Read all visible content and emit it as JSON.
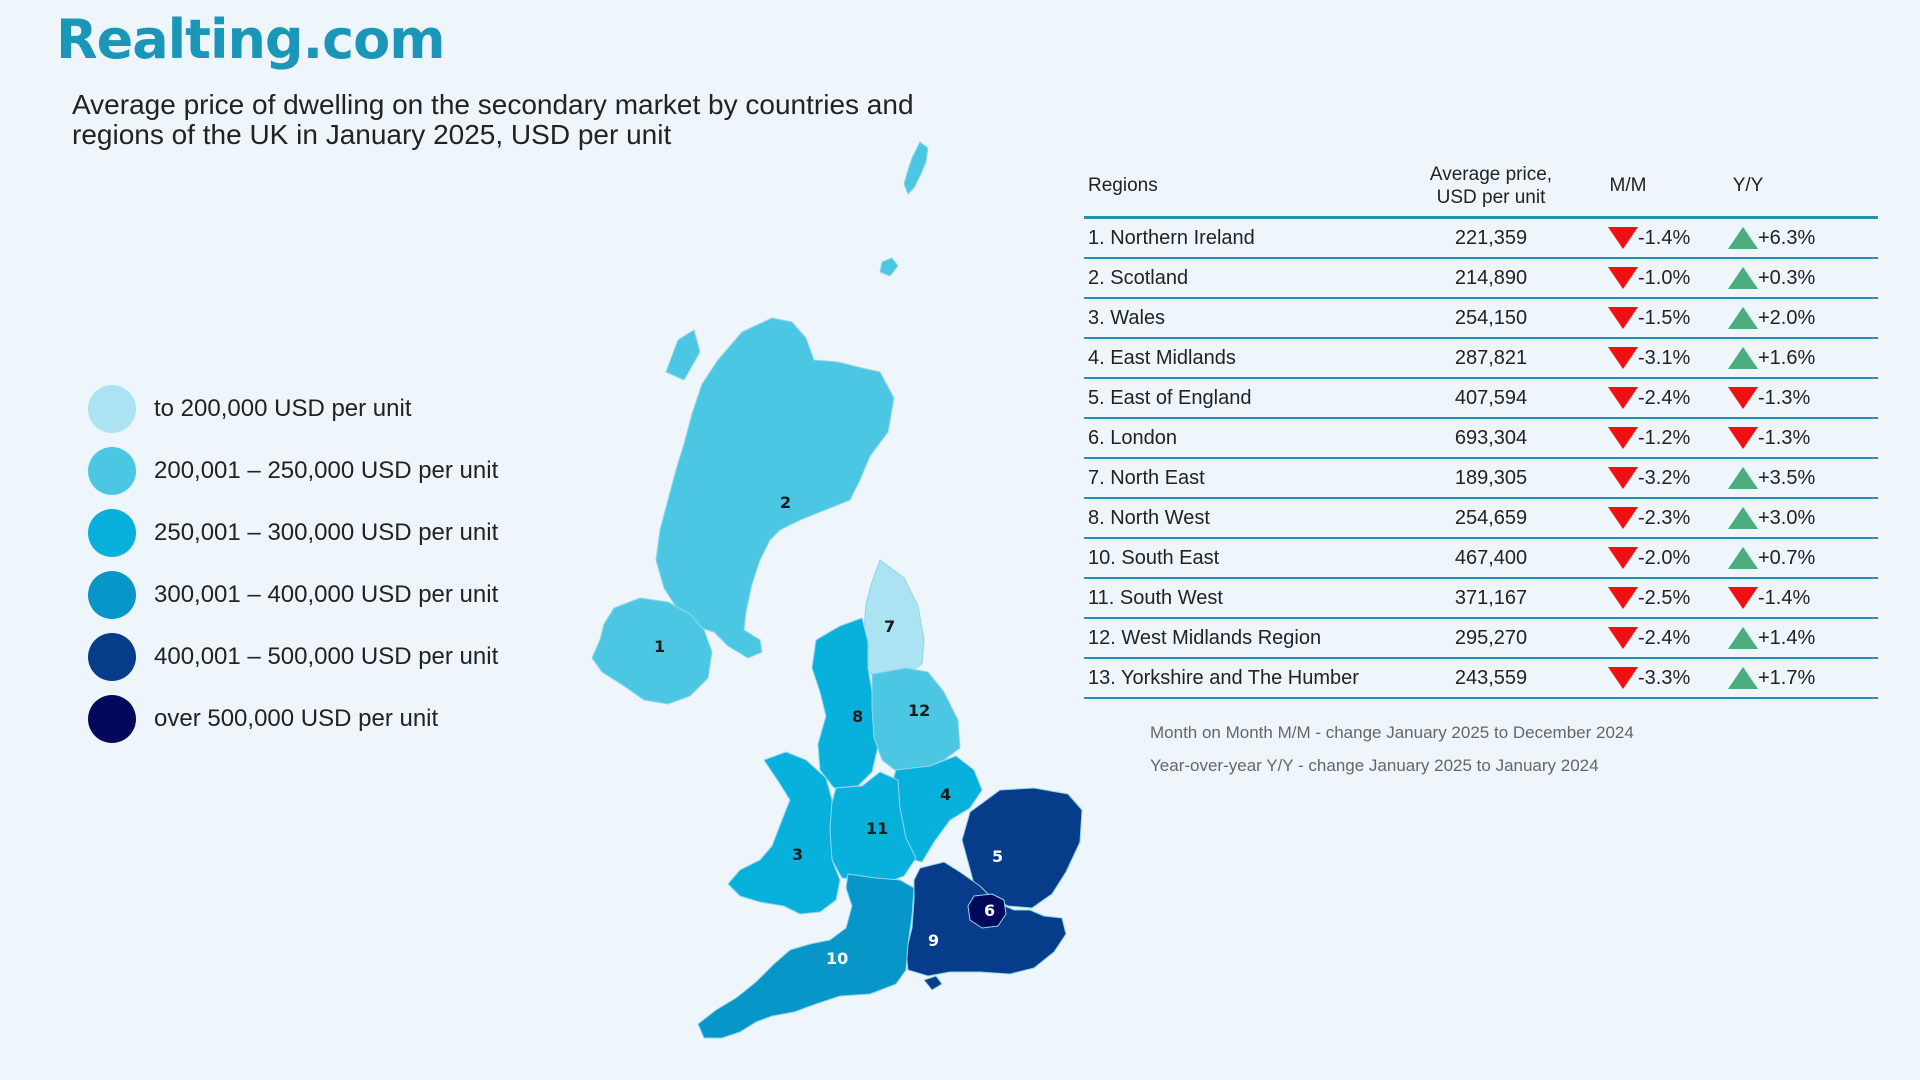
{
  "brand": {
    "logo_text": "Realting.com"
  },
  "title": "Average price of dwelling on the secondary market by countries and regions of the UK in January 2025, USD per unit",
  "legend": [
    {
      "label": "to 200,000 USD per unit",
      "color": "#abe3f2"
    },
    {
      "label": "200,001 – 250,000 USD per unit",
      "color": "#4cc7e3"
    },
    {
      "label": "250,001 – 300,000 USD per unit",
      "color": "#08b0dc"
    },
    {
      "label": "300,001 – 400,000 USD per unit",
      "color": "#0696c8"
    },
    {
      "label": "400,001 – 500,000 USD per unit",
      "color": "#063c8a"
    },
    {
      "label": "over 500,000 USD per unit",
      "color": "#04085a"
    }
  ],
  "map": {
    "region_numbers": [
      "1",
      "2",
      "3",
      "4",
      "5",
      "6",
      "7",
      "8",
      "9",
      "10",
      "11",
      "12"
    ],
    "region_colors": {
      "1": "#4cc7e3",
      "2": "#4cc7e3",
      "3": "#08b0dc",
      "4": "#08b0dc",
      "5": "#063c8a",
      "6": "#04085a",
      "7": "#abe3f2",
      "8": "#08b0dc",
      "9": "#063c8a",
      "10": "#0696c8",
      "11": "#08b0dc",
      "12": "#4cc7e3"
    }
  },
  "table": {
    "headers": {
      "regions": "Regions",
      "price_line1": "Average price,",
      "price_line2": "USD per unit",
      "mm": "M/M",
      "yy": "Y/Y"
    },
    "rows": [
      {
        "name": "1. Northern Ireland",
        "price": "221,359",
        "mm": "-1.4%",
        "mm_dir": "down",
        "yy": "+6.3%",
        "yy_dir": "up"
      },
      {
        "name": "2. Scotland",
        "price": "214,890",
        "mm": "-1.0%",
        "mm_dir": "down",
        "yy": "+0.3%",
        "yy_dir": "up"
      },
      {
        "name": "3. Wales",
        "price": "254,150",
        "mm": "-1.5%",
        "mm_dir": "down",
        "yy": "+2.0%",
        "yy_dir": "up"
      },
      {
        "name": "4. East Midlands",
        "price": "287,821",
        "mm": "-3.1%",
        "mm_dir": "down",
        "yy": "+1.6%",
        "yy_dir": "up"
      },
      {
        "name": "5. East of England",
        "price": "407,594",
        "mm": "-2.4%",
        "mm_dir": "down",
        "yy": "-1.3%",
        "yy_dir": "down"
      },
      {
        "name": "6. London",
        "price": "693,304",
        "mm": "-1.2%",
        "mm_dir": "down",
        "yy": "-1.3%",
        "yy_dir": "down"
      },
      {
        "name": "7. North East",
        "price": "189,305",
        "mm": "-3.2%",
        "mm_dir": "down",
        "yy": "+3.5%",
        "yy_dir": "up"
      },
      {
        "name": "8. North West",
        "price": "254,659",
        "mm": "-2.3%",
        "mm_dir": "down",
        "yy": "+3.0%",
        "yy_dir": "up"
      },
      {
        "name": "10. South East",
        "price": "467,400",
        "mm": "-2.0%",
        "mm_dir": "down",
        "yy": "+0.7%",
        "yy_dir": "up"
      },
      {
        "name": "11. South West",
        "price": "371,167",
        "mm": "-2.5%",
        "mm_dir": "down",
        "yy": "-1.4%",
        "yy_dir": "down"
      },
      {
        "name": "12. West Midlands Region",
        "price": "295,270",
        "mm": "-2.4%",
        "mm_dir": "down",
        "yy": "+1.4%",
        "yy_dir": "up"
      },
      {
        "name": "13. Yorkshire and The Humber",
        "price": "243,559",
        "mm": "-3.3%",
        "mm_dir": "down",
        "yy": "+1.7%",
        "yy_dir": "up"
      }
    ]
  },
  "notes": {
    "mm": "Month on Month M/M  - change January 2025 to December 2024",
    "yy": "Year-over-year Y/Y - change January 2025 to January 2024"
  }
}
